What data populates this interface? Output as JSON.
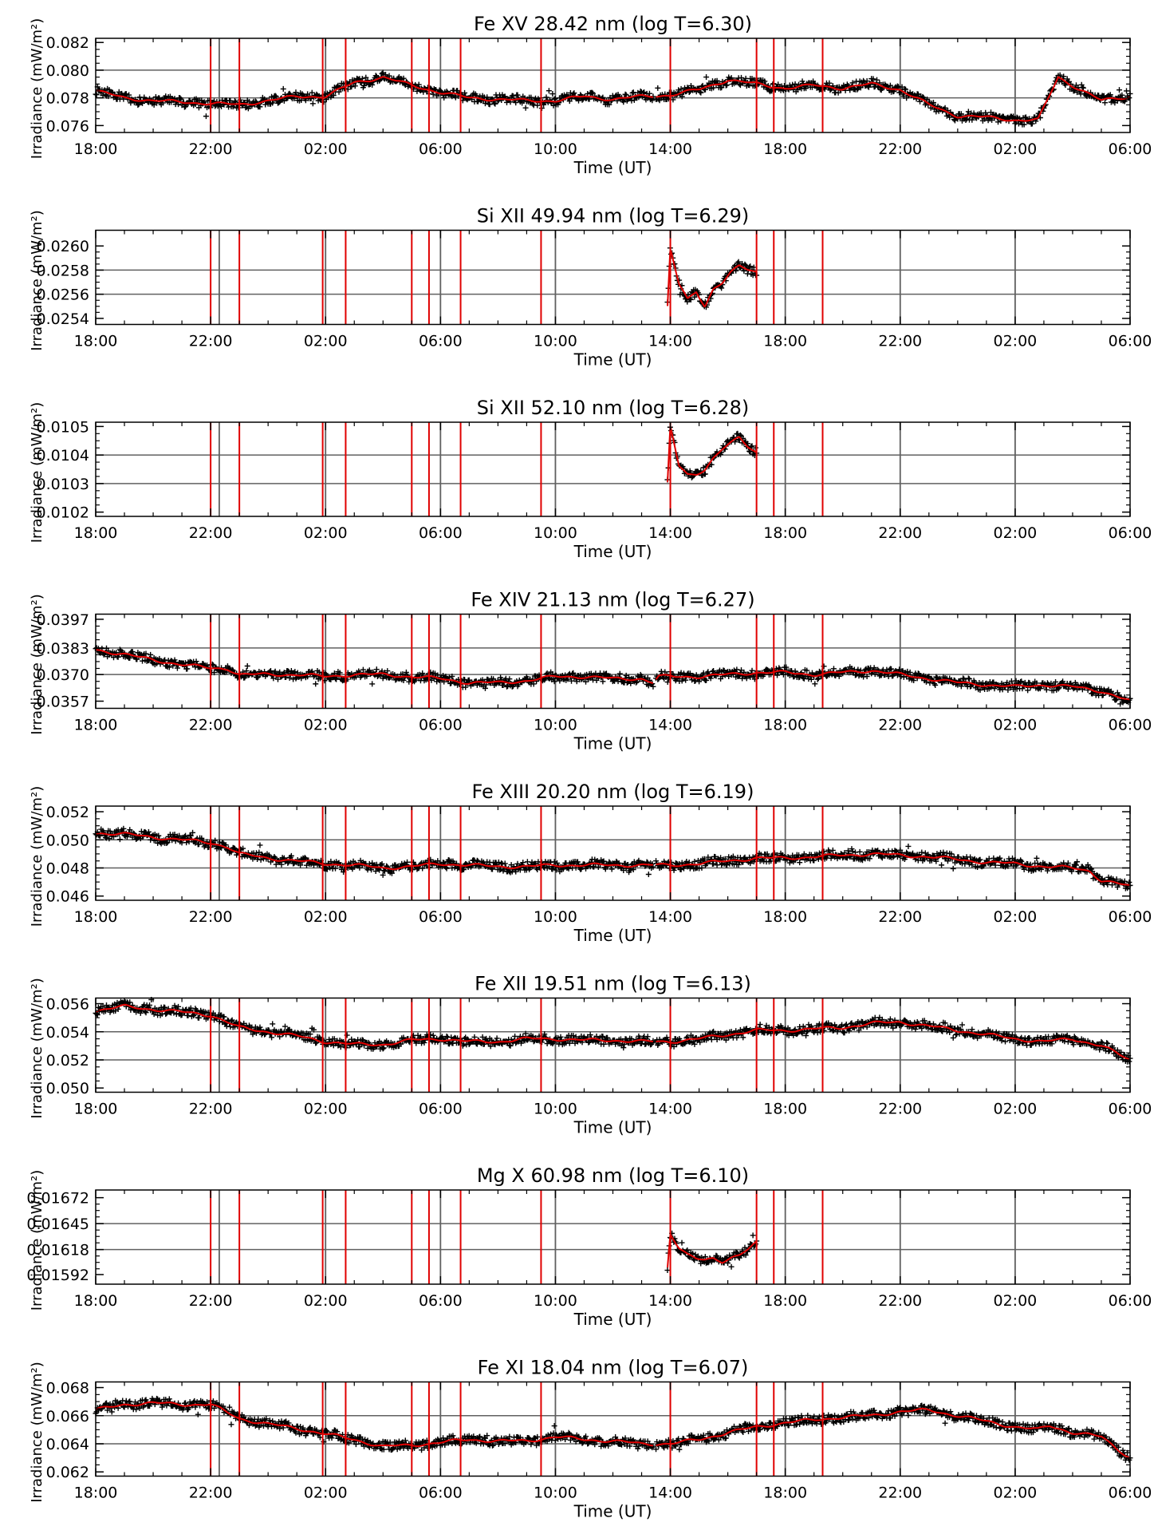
{
  "shared": {
    "xlabel": "Time (UT)",
    "ylabel": "Irradiance (mW/m²)",
    "x_ticks": [
      "18:00",
      "22:00",
      "02:00",
      "06:00",
      "10:00",
      "14:00",
      "18:00",
      "22:00",
      "02:00",
      "06:00"
    ],
    "x_range_hours": [
      0,
      36
    ],
    "gray_lines_hours": [
      4.3,
      8.0,
      12.0,
      16.0,
      20.0,
      24.0,
      28.0,
      32.0
    ],
    "red_lines_hours": [
      4.0,
      5.0,
      7.9,
      8.7,
      11.0,
      11.6,
      12.7,
      15.5,
      20.0,
      23.0,
      23.6,
      25.3
    ],
    "colors": {
      "data_points": "#000000",
      "fit_line": "#e00000",
      "event_lines": "#e00000",
      "grid_lines": "#606060"
    },
    "grid": true
  },
  "chart_data": [
    {
      "type": "scatter",
      "title": "Fe XV 28.42 nm (log T=6.30)",
      "xlabel": "Time (UT)",
      "ylabel": "Irradiance (mW/m²)",
      "y_ticks": [
        "0.082",
        "0.080",
        "0.078",
        "0.076"
      ],
      "ylim": [
        0.0755,
        0.0823
      ],
      "coverage_hours": [
        [
          0,
          19.4
        ],
        [
          19.5,
          36
        ]
      ],
      "series": [
        {
          "x": [
            0,
            1,
            2,
            3,
            4,
            5,
            6,
            7,
            8,
            9,
            10,
            11,
            12,
            13,
            14,
            15,
            16,
            17,
            18,
            19,
            20,
            21,
            22,
            23,
            24,
            25,
            26,
            27,
            28,
            29,
            30,
            31,
            32,
            32.8,
            33.5,
            34,
            35,
            36
          ],
          "y": [
            0.0785,
            0.078,
            0.0778,
            0.0777,
            0.0776,
            0.0775,
            0.0778,
            0.0781,
            0.0781,
            0.0791,
            0.0795,
            0.0789,
            0.0784,
            0.078,
            0.0779,
            0.0778,
            0.0778,
            0.0781,
            0.0779,
            0.0781,
            0.0782,
            0.0786,
            0.0793,
            0.079,
            0.0787,
            0.0789,
            0.0787,
            0.079,
            0.0786,
            0.0775,
            0.0767,
            0.0766,
            0.0764,
            0.0764,
            0.0795,
            0.0789,
            0.0778,
            0.0781
          ]
        }
      ]
    },
    {
      "type": "scatter",
      "title": "Si XII 49.94 nm (log T=6.29)",
      "xlabel": "Time (UT)",
      "ylabel": "Irradiance (mW/m²)",
      "y_ticks": [
        "0.0260",
        "0.0258",
        "0.0256",
        "0.0254"
      ],
      "ylim": [
        0.02535,
        0.02613
      ],
      "coverage_hours": [
        [
          19.9,
          23.0
        ]
      ],
      "series": [
        {
          "x": [
            19.9,
            20.0,
            20.3,
            20.6,
            20.9,
            21.2,
            21.5,
            21.8,
            22.1,
            22.4,
            22.7,
            23.0
          ],
          "y": [
            0.0255,
            0.02598,
            0.02568,
            0.02555,
            0.02562,
            0.0255,
            0.02565,
            0.0257,
            0.02578,
            0.02583,
            0.0258,
            0.02578
          ]
        }
      ]
    },
    {
      "type": "scatter",
      "title": "Si XII 52.10 nm (log T=6.28)",
      "xlabel": "Time (UT)",
      "ylabel": "Irradiance (mW/m²)",
      "y_ticks": [
        "0.0105",
        "0.0104",
        "0.0103",
        "0.0102"
      ],
      "ylim": [
        0.010185,
        0.010515
      ],
      "coverage_hours": [
        [
          19.9,
          23.0
        ]
      ],
      "series": [
        {
          "x": [
            19.9,
            20.0,
            20.3,
            20.6,
            20.9,
            21.2,
            21.5,
            21.8,
            22.1,
            22.4,
            22.7,
            23.0
          ],
          "y": [
            0.0103,
            0.0105,
            0.01036,
            0.01033,
            0.010335,
            0.01035,
            0.01039,
            0.01042,
            0.01044,
            0.01046,
            0.01043,
            0.01041
          ]
        }
      ]
    },
    {
      "type": "scatter",
      "title": "Fe XIV 21.13 nm (log T=6.27)",
      "xlabel": "Time (UT)",
      "ylabel": "Irradiance (mW/m²)",
      "y_ticks": [
        "0.0397",
        "0.0383",
        "0.0370",
        "0.0357"
      ],
      "ylim": [
        0.03535,
        0.03995
      ],
      "coverage_hours": [
        [
          0,
          19.4
        ],
        [
          19.5,
          36
        ]
      ],
      "series": [
        {
          "x": [
            0,
            1,
            2,
            3,
            4,
            4.6,
            5,
            6,
            7,
            8,
            9,
            10,
            11,
            12,
            13,
            14,
            15,
            16,
            17,
            18,
            19,
            19.4,
            19.6,
            20,
            21,
            22,
            23,
            24,
            25,
            26,
            27,
            28,
            29,
            30,
            31,
            32,
            33,
            34,
            35,
            36
          ],
          "y": [
            0.0382,
            0.038,
            0.0377,
            0.0375,
            0.0373,
            0.0373,
            0.037,
            0.037,
            0.037,
            0.0369,
            0.037,
            0.037,
            0.0369,
            0.0368,
            0.0366,
            0.0366,
            0.0367,
            0.0369,
            0.0369,
            0.0368,
            0.0368,
            0.0366,
            0.0369,
            0.0369,
            0.0369,
            0.037,
            0.0371,
            0.0371,
            0.037,
            0.0371,
            0.0372,
            0.037,
            0.0368,
            0.0366,
            0.0365,
            0.0364,
            0.0365,
            0.0364,
            0.0362,
            0.0357
          ]
        }
      ]
    },
    {
      "type": "scatter",
      "title": "Fe XIII 20.20 nm (log T=6.19)",
      "xlabel": "Time (UT)",
      "ylabel": "Irradiance (mW/m²)",
      "y_ticks": [
        "0.052",
        "0.050",
        "0.048",
        "0.046"
      ],
      "ylim": [
        0.0457,
        0.0524
      ],
      "coverage_hours": [
        [
          0,
          19.4
        ],
        [
          19.5,
          36
        ]
      ],
      "series": [
        {
          "x": [
            0,
            1,
            2,
            3,
            4,
            4.6,
            5,
            6,
            7,
            8,
            9,
            10,
            11,
            12,
            13,
            14,
            15,
            16,
            17,
            18,
            19,
            20,
            21,
            22,
            23,
            24,
            25,
            26,
            27,
            28,
            29,
            30,
            31,
            32,
            33,
            34,
            34.6,
            35,
            36
          ],
          "y": [
            0.0505,
            0.0504,
            0.0502,
            0.05,
            0.0498,
            0.0495,
            0.049,
            0.0487,
            0.0485,
            0.0483,
            0.0482,
            0.048,
            0.0481,
            0.0483,
            0.0482,
            0.0481,
            0.0481,
            0.0482,
            0.0482,
            0.0482,
            0.0482,
            0.0482,
            0.0483,
            0.0485,
            0.0487,
            0.0487,
            0.0488,
            0.0489,
            0.049,
            0.0489,
            0.0488,
            0.0486,
            0.0484,
            0.0483,
            0.0481,
            0.048,
            0.0478,
            0.0471,
            0.0467
          ]
        }
      ]
    },
    {
      "type": "scatter",
      "title": "Fe XII 19.51 nm (log T=6.13)",
      "xlabel": "Time (UT)",
      "ylabel": "Irradiance (mW/m²)",
      "y_ticks": [
        "0.056",
        "0.054",
        "0.052",
        "0.050"
      ],
      "ylim": [
        0.0497,
        0.0564
      ],
      "coverage_hours": [
        [
          0,
          19.4
        ],
        [
          19.5,
          36
        ]
      ],
      "series": [
        {
          "x": [
            0,
            1,
            2,
            3,
            4,
            5,
            6,
            7,
            8,
            9,
            10,
            11,
            12,
            13,
            14,
            15,
            16,
            17,
            18,
            19,
            20,
            21,
            22,
            23,
            24,
            25,
            26,
            27,
            28,
            29,
            30,
            31,
            32,
            33,
            34,
            35,
            36
          ],
          "y": [
            0.0555,
            0.0558,
            0.0556,
            0.0554,
            0.0552,
            0.0543,
            0.054,
            0.0537,
            0.0533,
            0.0531,
            0.0531,
            0.0534,
            0.0535,
            0.0533,
            0.0533,
            0.0535,
            0.0535,
            0.0534,
            0.0534,
            0.0533,
            0.0533,
            0.0535,
            0.0538,
            0.0541,
            0.0541,
            0.0542,
            0.0543,
            0.0546,
            0.0547,
            0.0544,
            0.0541,
            0.0538,
            0.0535,
            0.0533,
            0.0535,
            0.053,
            0.052
          ]
        }
      ]
    },
    {
      "type": "scatter",
      "title": "Mg X 60.98 nm (log T=6.10)",
      "xlabel": "Time (UT)",
      "ylabel": "Irradiance (mW/m²)",
      "y_ticks": [
        "0.01672",
        "0.01645",
        "0.01618",
        "0.01592"
      ],
      "ylim": [
        0.01582,
        0.0168
      ],
      "coverage_hours": [
        [
          19.9,
          23.0
        ]
      ],
      "series": [
        {
          "x": [
            19.9,
            20.0,
            20.3,
            20.6,
            20.9,
            21.2,
            21.5,
            21.8,
            22.1,
            22.4,
            22.7,
            23.0
          ],
          "y": [
            0.016,
            0.01635,
            0.0162,
            0.01612,
            0.01608,
            0.01607,
            0.01609,
            0.01606,
            0.0161,
            0.01612,
            0.01618,
            0.01625
          ]
        }
      ]
    },
    {
      "type": "scatter",
      "title": "Fe XI 18.04 nm (log T=6.07)",
      "xlabel": "Time (UT)",
      "ylabel": "Irradiance (mW/m²)",
      "y_ticks": [
        "0.068",
        "0.066",
        "0.064",
        "0.062"
      ],
      "ylim": [
        0.0617,
        0.0684
      ],
      "coverage_hours": [
        [
          0,
          19.4
        ],
        [
          19.5,
          36
        ]
      ],
      "series": [
        {
          "x": [
            0,
            1,
            2,
            3,
            4,
            5,
            6,
            7,
            8,
            9,
            10,
            11,
            12,
            13,
            14,
            15,
            16,
            17,
            18,
            19,
            20,
            21,
            22,
            23,
            24,
            25,
            26,
            27,
            28,
            29,
            30,
            31,
            32,
            32.8,
            33.2,
            34,
            35,
            36
          ],
          "y": [
            0.0664,
            0.0668,
            0.0669,
            0.0668,
            0.0668,
            0.0658,
            0.0654,
            0.0651,
            0.0647,
            0.0643,
            0.0638,
            0.0639,
            0.0641,
            0.0643,
            0.0642,
            0.0642,
            0.0645,
            0.0643,
            0.0642,
            0.064,
            0.064,
            0.0643,
            0.0648,
            0.0652,
            0.0655,
            0.0657,
            0.0659,
            0.066,
            0.0663,
            0.0664,
            0.066,
            0.0656,
            0.0652,
            0.065,
            0.0653,
            0.0648,
            0.0645,
            0.063
          ]
        }
      ]
    }
  ]
}
